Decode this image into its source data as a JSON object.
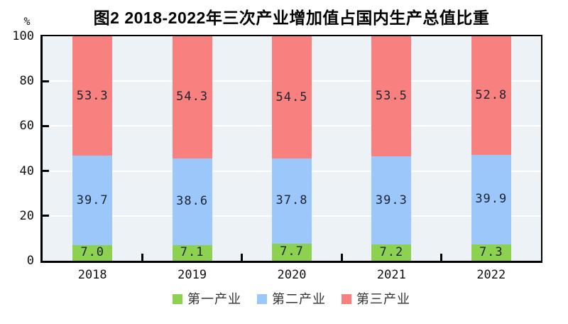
{
  "title": "图2 2018-2022年三次产业增加值占国内生产总值比重",
  "unit_label": "%",
  "chart_data": {
    "type": "bar",
    "stacked": true,
    "title": "图2 2018-2022年三次产业增加值占国内生产总值比重",
    "xlabel": "",
    "ylabel": "%",
    "categories": [
      "2018",
      "2019",
      "2020",
      "2021",
      "2022"
    ],
    "series": [
      {
        "name": "第一产业",
        "color": "#8CD250",
        "values": [
          7.0,
          7.1,
          7.7,
          7.2,
          7.3
        ]
      },
      {
        "name": "第二产业",
        "color": "#9BC7FB",
        "values": [
          39.7,
          38.6,
          37.8,
          39.3,
          39.9
        ]
      },
      {
        "name": "第三产业",
        "color": "#F8807E",
        "values": [
          53.3,
          54.3,
          54.5,
          53.5,
          52.8
        ]
      }
    ],
    "ylim": [
      0,
      100
    ],
    "yticks": [
      0,
      20,
      40,
      60,
      80,
      100
    ],
    "grid": true,
    "value_labels_decimals": 1,
    "legend_position": "bottom"
  },
  "colors": {
    "plot_background": "#EDF2F7",
    "gridline": "#FFFFFF",
    "axis": "#000000",
    "value_label_text": "#1B2330",
    "legend_text": "#333333"
  }
}
